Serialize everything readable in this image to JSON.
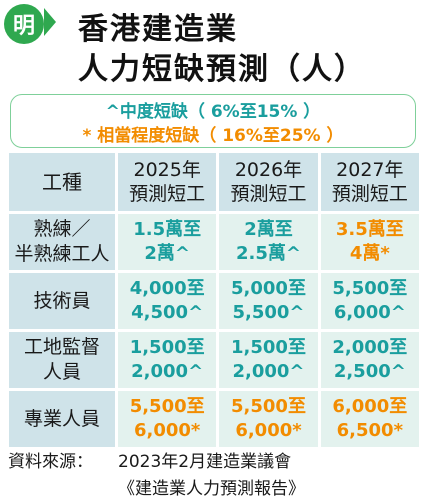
{
  "logo": "明",
  "title": [
    "香港建造業",
    "人力短缺預測（人）"
  ],
  "legend": [
    "^中度短缺（ 6%至15% ）",
    "* 相當程度短缺（ 16%至25% ）"
  ],
  "table": {
    "header": [
      "工種",
      "2025年\n預測短工",
      "2026年\n預測短工",
      "2027年\n預測短工"
    ],
    "rows": [
      {
        "label": "熟練／\n半熟練工人",
        "cells": [
          {
            "text": "1.5萬至\n2萬^",
            "level": "moderate"
          },
          {
            "text": "2萬至\n2.5萬^",
            "level": "moderate"
          },
          {
            "text": "3.5萬至\n4萬*",
            "level": "considerable"
          }
        ]
      },
      {
        "label": "技術員",
        "cells": [
          {
            "text": "4,000至\n4,500^",
            "level": "moderate"
          },
          {
            "text": "5,000至\n5,500^",
            "level": "moderate"
          },
          {
            "text": "5,500至\n6,000^",
            "level": "moderate"
          }
        ]
      },
      {
        "label": "工地監督\n人員",
        "cells": [
          {
            "text": "1,500至\n2,000^",
            "level": "moderate"
          },
          {
            "text": "1,500至\n2,000^",
            "level": "moderate"
          },
          {
            "text": "2,000至\n2,500^",
            "level": "moderate"
          }
        ]
      },
      {
        "label": "專業人員",
        "cells": [
          {
            "text": "5,500至\n6,000*",
            "level": "considerable"
          },
          {
            "text": "5,500至\n6,000*",
            "level": "considerable"
          },
          {
            "text": "6,000至\n6,500*",
            "level": "considerable"
          }
        ]
      }
    ]
  },
  "source": {
    "label": "資料來源：",
    "line1": "2023年2月建造業議會",
    "line2": "《建造業人力預測報告》"
  },
  "colors": {
    "moderate": "#1a9e9e",
    "considerable": "#f28c00",
    "brand": "#2fa84f"
  }
}
